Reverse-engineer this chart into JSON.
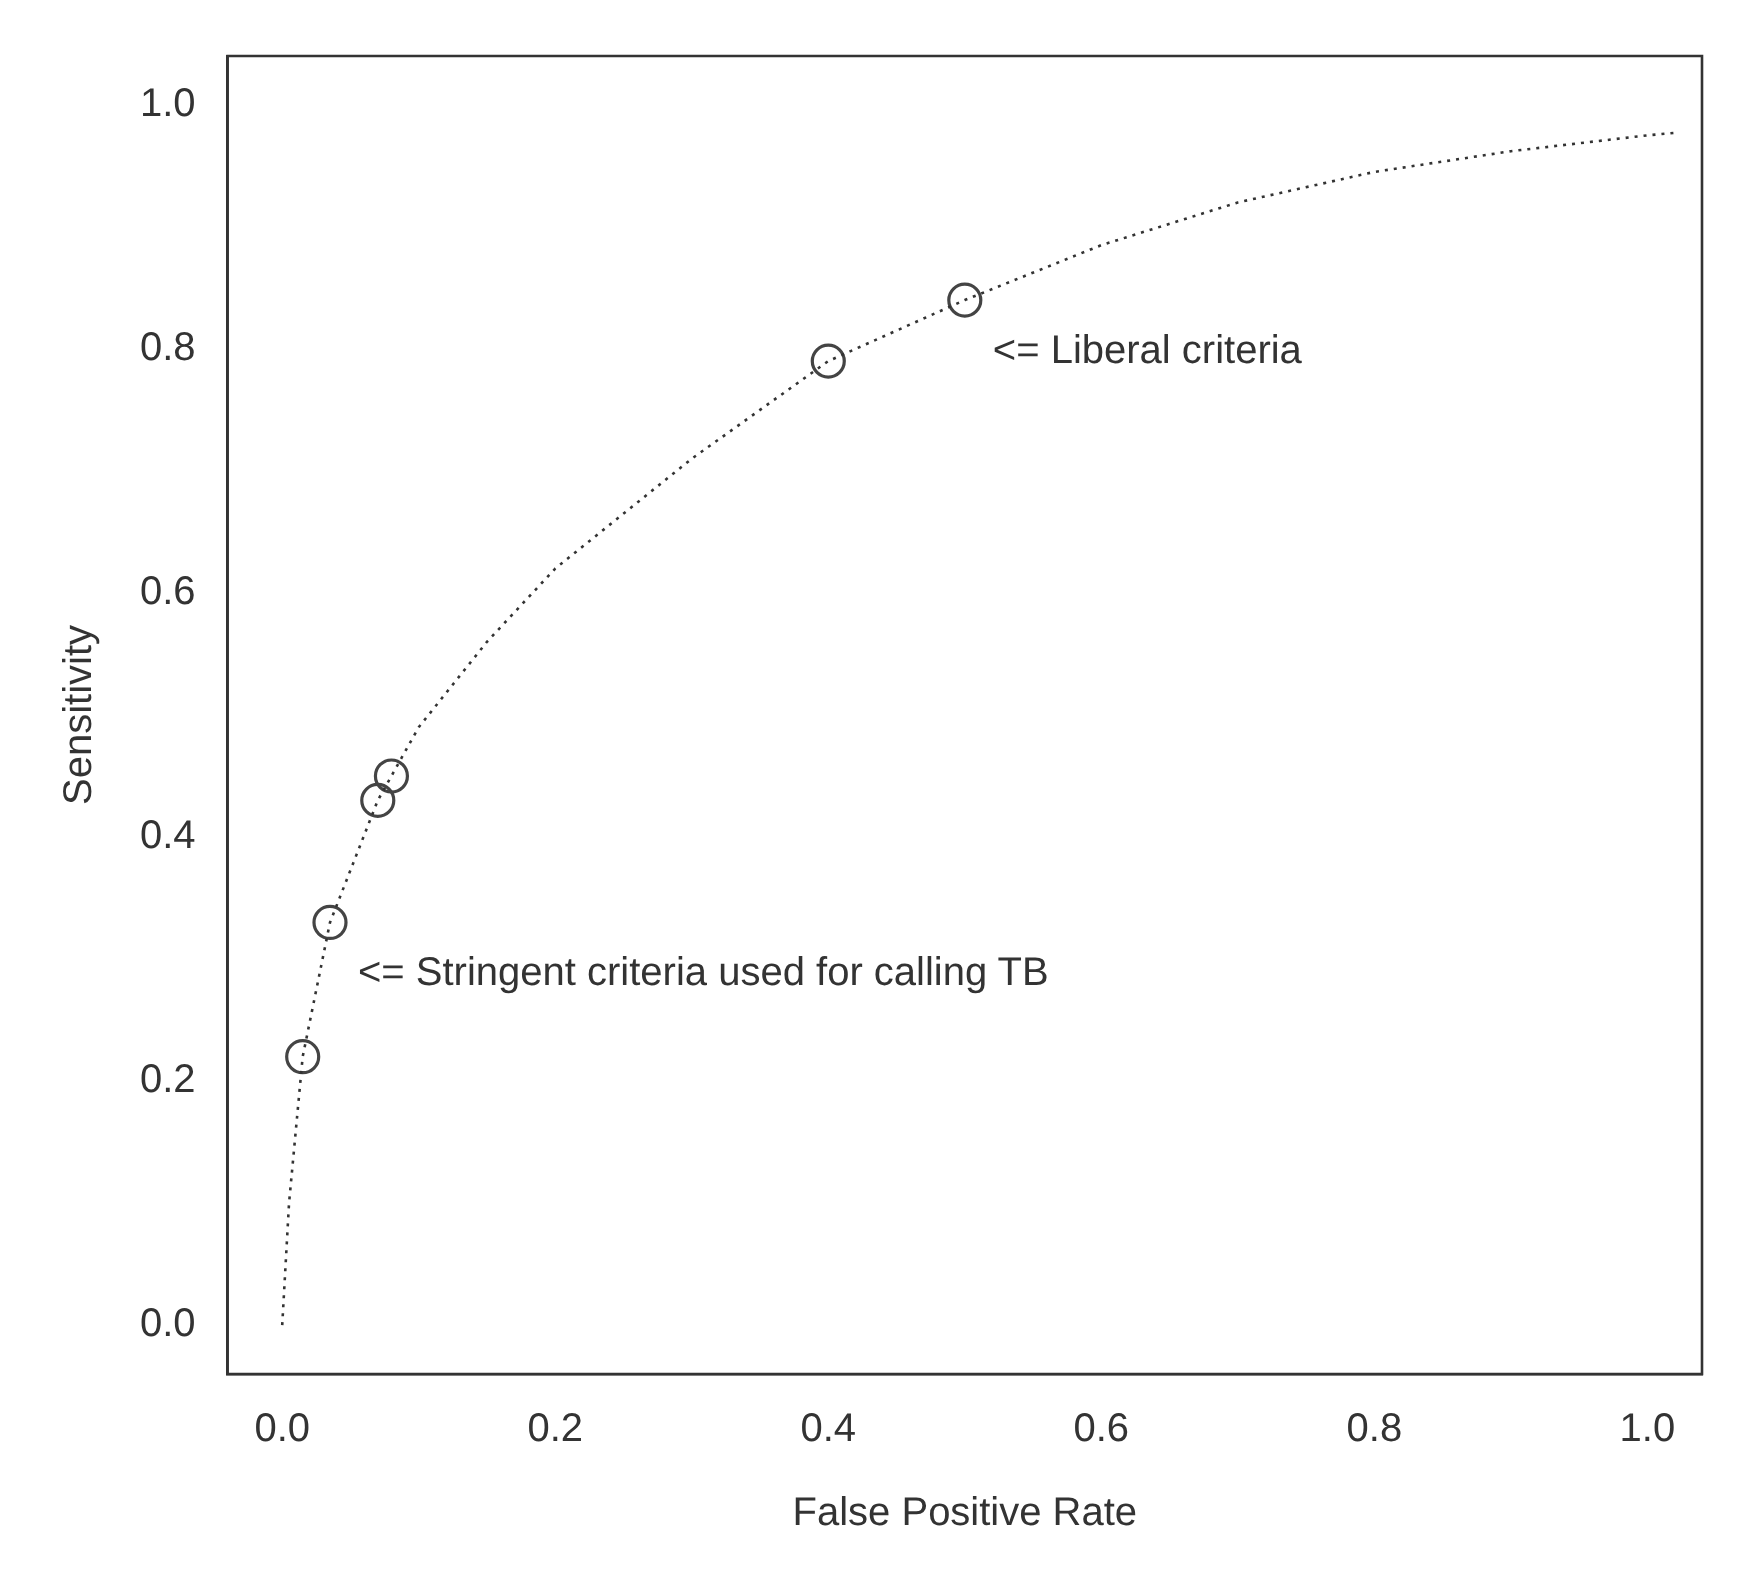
{
  "chart_data": {
    "type": "scatter",
    "xlabel": "False Positive Rate",
    "ylabel": "Sensitivity",
    "xlim": [
      -0.04,
      1.04
    ],
    "ylim": [
      -0.04,
      1.04
    ],
    "xticks": [
      {
        "value": 0,
        "label": "0.0"
      },
      0.2,
      0.4,
      0.6,
      0.8,
      {
        "value": 1,
        "label": "1.0"
      }
    ],
    "yticks": [
      {
        "value": 0,
        "label": "0.0"
      },
      0.2,
      0.4,
      0.6,
      0.8,
      {
        "value": 1,
        "label": "1.0"
      }
    ],
    "grid": false,
    "legend": false,
    "series": [
      {
        "type": "line",
        "color": "#333333",
        "line_style": "dotted",
        "marker": "none",
        "x": [
          0,
          0.005,
          0.015,
          0.035,
          0.07,
          0.1,
          0.15,
          0.2,
          0.3,
          0.4,
          0.5,
          0.6,
          0.7,
          0.8,
          0.9,
          1.0,
          1.02
        ],
        "values": [
          0,
          0.1,
          0.22,
          0.33,
          0.43,
          0.49,
          0.56,
          0.62,
          0.71,
          0.79,
          0.84,
          0.885,
          0.92,
          0.945,
          0.962,
          0.975,
          0.977
        ]
      },
      {
        "type": "scatter",
        "color": "#444444",
        "marker": "circle",
        "x": [
          0.015,
          0.035,
          0.07,
          0.08,
          0.4,
          0.5
        ],
        "values": [
          0.22,
          0.33,
          0.43,
          0.45,
          0.79,
          0.84
        ]
      }
    ],
    "annotations": [
      {
        "text": "<= Liberal criteria",
        "x": 0.5,
        "y": 0.84
      },
      {
        "text": "<= Stringent criteria used for calling TB",
        "x": 0.035,
        "y": 0.33
      }
    ]
  }
}
